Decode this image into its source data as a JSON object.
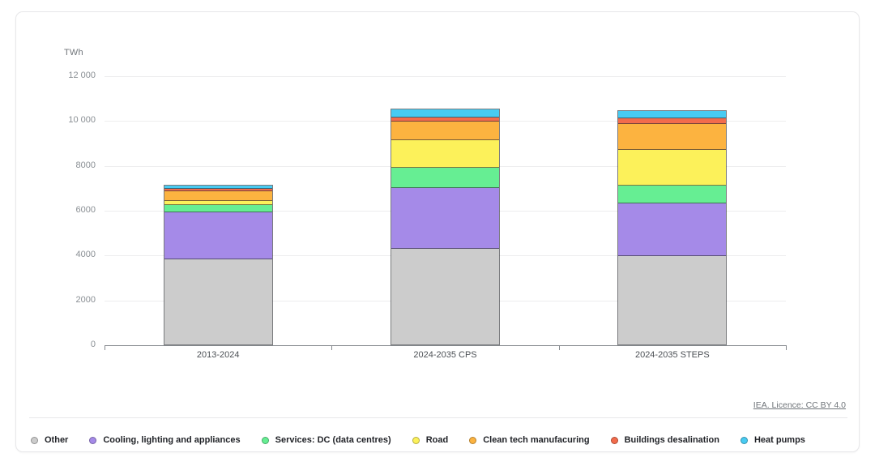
{
  "units_label": "TWh",
  "attribution": {
    "text": "IEA. Licence: CC BY 4.0"
  },
  "chart_data": {
    "type": "bar",
    "stacked": true,
    "title": "",
    "ylabel": "TWh",
    "xlabel": "",
    "grid": true,
    "legend_position": "bottom",
    "categories": [
      "2013-2024",
      "2024-2035 CPS",
      "2024-2035 STEPS"
    ],
    "series": [
      {
        "name": "Other",
        "color": "#cccccc",
        "values": [
          3950,
          4370,
          4050
        ]
      },
      {
        "name": "Cooling, lighting and appliances",
        "color": "#a58ae8",
        "values": [
          2150,
          2770,
          2390
        ]
      },
      {
        "name": "Services: DC (data centres)",
        "color": "#66ee93",
        "values": [
          280,
          890,
          760
        ]
      },
      {
        "name": "Road",
        "color": "#fcf15a",
        "values": [
          170,
          1200,
          1610
        ]
      },
      {
        "name": "Clean tech manufacuring",
        "color": "#fcb340",
        "values": [
          430,
          810,
          1160
        ]
      },
      {
        "name": "Buildings desalination",
        "color": "#f26b4c",
        "values": [
          60,
          180,
          200
        ]
      },
      {
        "name": "Heat pumps",
        "color": "#48cbf2",
        "values": [
          110,
          320,
          310
        ]
      }
    ],
    "totals": [
      7150,
      10540,
      10480
    ],
    "y_axis": {
      "min": 0,
      "max": 12000,
      "tick_step": 2000,
      "tick_labels": [
        "0",
        "2000",
        "4000",
        "6000",
        "8000",
        "10 000",
        "12 000"
      ]
    }
  }
}
